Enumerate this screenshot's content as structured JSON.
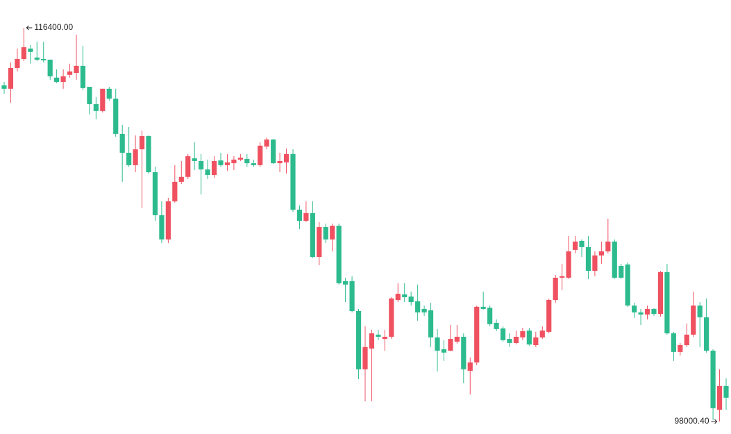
{
  "chart_data": {
    "type": "candlestick",
    "up_color": "#ef5160",
    "down_color": "#2dbb8e",
    "open": [
      113710,
      113550,
      114520,
      114940,
      115430,
      115010,
      114940,
      114910,
      114070,
      113870,
      114200,
      114290,
      114620,
      113640,
      112830,
      112510,
      113550,
      113090,
      111440,
      110560,
      109980,
      110720,
      111340,
      109650,
      107640,
      106510,
      108290,
      109200,
      109430,
      110300,
      110170,
      109780,
      109520,
      110200,
      109980,
      110070,
      110240,
      110270,
      110070,
      109980,
      110850,
      111180,
      110070,
      110110,
      110500,
      107900,
      107380,
      107740,
      105690,
      107090,
      106510,
      107150,
      104560,
      104560,
      103160,
      100440,
      101410,
      102060,
      101860,
      101960,
      103680,
      103940,
      103840,
      103620,
      103260,
      103200,
      101930,
      101380,
      101310,
      101730,
      101960,
      100370,
      100760,
      103360,
      103320,
      102610,
      102350,
      101860,
      101670,
      101930,
      102250,
      101570,
      101930,
      102190,
      103680,
      104720,
      104720,
      106020,
      106440,
      106150,
      105040,
      105760,
      105950,
      106410,
      105270,
      105340,
      103420,
      103100,
      103000,
      103260,
      103030,
      104980,
      102120,
      101250,
      101570,
      102060,
      103420,
      102870,
      101310,
      98550,
      99660
    ],
    "high": [
      113870,
      114780,
      115430,
      116400,
      115590,
      115750,
      115750,
      114910,
      114460,
      114460,
      114720,
      116080,
      115560,
      113640,
      113160,
      113550,
      113640,
      113550,
      111860,
      111760,
      111370,
      111600,
      111370,
      109910,
      108290,
      108450,
      109980,
      110170,
      110500,
      111050,
      110500,
      110240,
      110400,
      110560,
      110500,
      110400,
      110500,
      110500,
      110240,
      111050,
      111270,
      111210,
      110560,
      110760,
      110720,
      108100,
      108290,
      108290,
      107320,
      107250,
      107250,
      107250,
      104720,
      104790,
      103260,
      102450,
      102290,
      102290,
      102290,
      103810,
      104460,
      104460,
      104070,
      104400,
      103420,
      103550,
      102320,
      101800,
      102510,
      102510,
      102120,
      100990,
      103420,
      104070,
      103420,
      102770,
      102450,
      102120,
      102250,
      102380,
      102380,
      102190,
      102450,
      103750,
      104850,
      105370,
      106670,
      106670,
      106510,
      106670,
      105950,
      106410,
      107480,
      106510,
      105370,
      105430,
      103550,
      103260,
      103420,
      103290,
      105040,
      105370,
      102190,
      101670,
      102580,
      104070,
      103580,
      103750,
      101380,
      100440,
      100020
    ],
    "low": [
      113320,
      112900,
      114360,
      114840,
      114720,
      114840,
      114780,
      113970,
      113810,
      113550,
      114070,
      113970,
      113480,
      112350,
      112120,
      112440,
      113000,
      111310,
      109200,
      109910,
      109650,
      107970,
      109590,
      107380,
      106340,
      106340,
      108230,
      109100,
      109330,
      109750,
      108610,
      109330,
      109390,
      109910,
      109720,
      109750,
      110170,
      109910,
      109910,
      109910,
      110720,
      110040,
      109650,
      109590,
      107800,
      106990,
      107320,
      105630,
      105300,
      106340,
      105950,
      104400,
      103580,
      103100,
      99980,
      98940,
      98940,
      101800,
      101310,
      101860,
      103580,
      103580,
      103420,
      102710,
      102940,
      101480,
      100340,
      100830,
      101280,
      101640,
      99790,
      99270,
      100630,
      103230,
      102450,
      102220,
      101730,
      101480,
      101600,
      101800,
      101540,
      101480,
      101860,
      102120,
      103550,
      104140,
      104660,
      105860,
      105690,
      104660,
      104790,
      105370,
      105860,
      104660,
      104660,
      103360,
      102840,
      102510,
      102770,
      102940,
      102900,
      102060,
      100830,
      101090,
      101480,
      101960,
      101480,
      101220,
      98070,
      98000.4,
      98550
    ],
    "close": [
      113550,
      114520,
      114940,
      115490,
      115270,
      114910,
      114880,
      114130,
      113870,
      114130,
      114360,
      114620,
      113580,
      112830,
      112510,
      113550,
      113090,
      111440,
      110560,
      109980,
      110720,
      111340,
      109650,
      107640,
      106510,
      108290,
      109200,
      109430,
      110400,
      110170,
      109780,
      109520,
      110170,
      109980,
      110110,
      110240,
      110330,
      110070,
      109980,
      110890,
      111180,
      110070,
      110170,
      110500,
      107900,
      107380,
      107740,
      105690,
      107090,
      106510,
      107150,
      104460,
      104400,
      103160,
      100440,
      101480,
      102120,
      101960,
      101960,
      103750,
      103970,
      103810,
      103580,
      103100,
      103100,
      101930,
      101310,
      101220,
      101860,
      101960,
      100440,
      100760,
      103360,
      103260,
      102550,
      102320,
      101800,
      101670,
      101960,
      102220,
      101600,
      101930,
      102250,
      103680,
      104720,
      104790,
      105950,
      106410,
      106150,
      105040,
      105760,
      105950,
      106410,
      104720,
      104720,
      103420,
      103100,
      103000,
      103260,
      103030,
      104980,
      102120,
      101250,
      101570,
      102060,
      103420,
      102870,
      101310,
      98620,
      99660,
      99110
    ],
    "annotations": [
      {
        "value": 116400,
        "label": "116400.00"
      },
      {
        "value": 98000.4,
        "label": "98000.40"
      }
    ]
  }
}
